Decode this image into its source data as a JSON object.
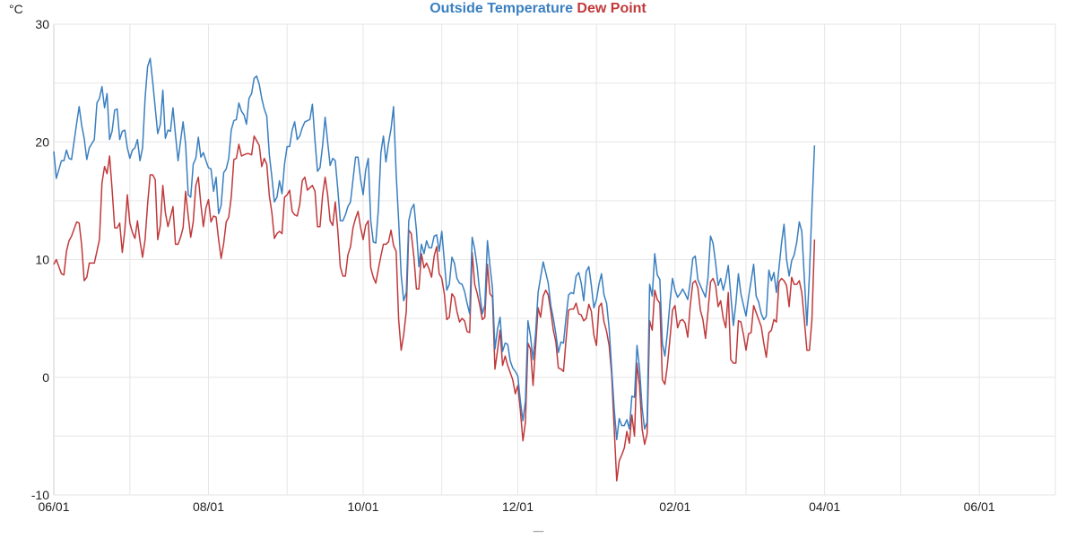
{
  "chart_data": {
    "type": "line",
    "title_parts": [
      {
        "text": "Outside Temperature",
        "color": "#3a7fc0"
      },
      {
        "text": "Dew Point",
        "color": "#c0393b"
      }
    ],
    "ylabel": "°C",
    "footer": "-------",
    "ylim": [
      -10,
      30
    ],
    "yticks": [
      30,
      20,
      10,
      0,
      -10
    ],
    "ygrid_step": 5,
    "xlim": [
      "06/01",
      "07/01"
    ],
    "xticks": [
      "06/01",
      "08/01",
      "10/01",
      "12/01",
      "02/01",
      "04/01",
      "06/01"
    ],
    "xgrid": "monthly",
    "grid": true,
    "grid_color": "#e6e6e6",
    "x": [
      "06/01",
      "06/02",
      "06/04",
      "06/05",
      "06/06",
      "06/07",
      "06/08",
      "06/10",
      "06/11",
      "06/12",
      "06/13",
      "06/14",
      "06/15",
      "06/17",
      "06/18",
      "06/19",
      "06/20",
      "06/21",
      "06/22",
      "06/23",
      "06/24",
      "06/25",
      "06/26",
      "06/27",
      "06/28",
      "06/29",
      "06/30",
      "07/01",
      "07/02",
      "07/03",
      "07/04",
      "07/05",
      "07/06",
      "07/07",
      "07/08",
      "07/09",
      "07/10",
      "07/11",
      "07/12",
      "07/13",
      "07/14",
      "07/15",
      "07/16",
      "07/17",
      "07/18",
      "07/19",
      "07/20",
      "07/21",
      "07/22",
      "07/23",
      "07/24",
      "07/25",
      "07/26",
      "07/27",
      "07/28",
      "07/29",
      "07/30",
      "07/31",
      "08/01",
      "08/02",
      "08/03",
      "08/04",
      "08/05",
      "08/06",
      "08/07",
      "08/08",
      "08/09",
      "08/10",
      "08/11",
      "08/12",
      "08/13",
      "08/14",
      "08/15",
      "08/16",
      "08/17",
      "08/18",
      "08/19",
      "08/20",
      "08/21",
      "08/22",
      "08/23",
      "08/24",
      "08/25",
      "08/26",
      "08/27",
      "08/28",
      "08/29",
      "08/30",
      "08/31",
      "09/01",
      "09/02",
      "09/03",
      "09/04",
      "09/05",
      "09/06",
      "09/07",
      "09/08",
      "09/09",
      "09/10",
      "09/11",
      "09/12",
      "09/13",
      "09/14",
      "09/15",
      "09/16",
      "09/17",
      "09/18",
      "09/19",
      "09/20",
      "09/21",
      "09/22",
      "09/23",
      "09/24",
      "09/25",
      "09/26",
      "09/27",
      "09/28",
      "09/29",
      "09/30",
      "10/01",
      "10/02",
      "10/03",
      "10/04",
      "10/05",
      "10/06",
      "10/07",
      "10/08",
      "10/09",
      "10/10",
      "10/11",
      "10/12",
      "10/13",
      "10/14",
      "10/15",
      "10/16",
      "10/17",
      "10/18",
      "10/19",
      "10/20",
      "10/21",
      "10/22",
      "10/23",
      "10/24",
      "10/25",
      "10/26",
      "10/27",
      "10/28",
      "10/29",
      "10/30",
      "10/31",
      "11/01",
      "11/02",
      "11/03",
      "11/04",
      "11/05",
      "11/06",
      "11/07",
      "11/08",
      "11/09",
      "11/10",
      "11/11",
      "11/12",
      "11/13",
      "11/14",
      "11/15",
      "11/16",
      "11/17",
      "11/18",
      "11/19",
      "11/20",
      "11/21",
      "11/22",
      "11/23",
      "11/24",
      "11/25",
      "11/26",
      "11/27",
      "11/28",
      "11/29",
      "11/30",
      "12/01",
      "12/02",
      "12/03",
      "12/04",
      "12/05",
      "12/06",
      "12/07",
      "12/08",
      "12/09",
      "12/10",
      "12/11",
      "12/12",
      "12/13",
      "12/14",
      "12/15",
      "12/16",
      "12/17",
      "12/18",
      "12/19",
      "12/20",
      "12/21",
      "12/22",
      "12/23",
      "12/24",
      "12/25",
      "12/26",
      "12/27",
      "12/28",
      "12/29",
      "12/30",
      "12/31",
      "01/01",
      "01/02",
      "01/03",
      "01/04",
      "01/05",
      "01/06",
      "01/07",
      "01/08",
      "01/09",
      "01/10",
      "01/11",
      "01/12",
      "01/13",
      "01/14",
      "01/15",
      "01/16",
      "01/17",
      "01/18",
      "01/19",
      "01/20",
      "01/21",
      "01/22",
      "01/23",
      "01/24",
      "01/25",
      "01/26",
      "01/27",
      "01/28",
      "01/29",
      "01/30",
      "01/31",
      "02/01",
      "02/02",
      "02/03",
      "02/04",
      "02/05",
      "02/06",
      "02/07",
      "02/08",
      "02/09",
      "02/10",
      "02/11",
      "02/12",
      "02/13",
      "02/14",
      "02/15",
      "02/16",
      "02/17",
      "02/18",
      "02/19",
      "02/20",
      "02/21",
      "02/22",
      "02/23",
      "02/24",
      "02/25",
      "02/26",
      "02/27",
      "02/28",
      "03/01",
      "03/02",
      "03/03",
      "03/04",
      "03/05",
      "03/06",
      "03/07",
      "03/08",
      "03/09",
      "03/10",
      "03/11",
      "03/12",
      "03/13",
      "03/14",
      "03/15",
      "03/16",
      "03/17",
      "03/18",
      "03/19",
      "03/20",
      "03/21",
      "03/22",
      "03/23",
      "03/24",
      "03/25",
      "03/26",
      "03/27",
      "03/28"
    ],
    "series": [
      {
        "name": "Outside Temperature",
        "color": "#3a7fc0",
        "values": [
          19.2,
          16.9,
          18.4,
          18.4,
          19.3,
          18.6,
          18.5,
          21.6,
          23.0,
          21.4,
          20.3,
          18.5,
          19.5,
          20.2,
          23.3,
          23.7,
          24.7,
          22.9,
          24.1,
          20.2,
          20.9,
          22.7,
          22.8,
          20.2,
          20.9,
          21.0,
          19.5,
          18.6,
          19.3,
          19.5,
          20.2,
          18.4,
          19.5,
          23.7,
          26.4,
          27.1,
          25.1,
          22.9,
          20.7,
          21.5,
          24.4,
          20.3,
          21.0,
          20.9,
          22.9,
          20.6,
          18.4,
          20.1,
          21.7,
          19.8,
          15.5,
          15.3,
          18.1,
          18.6,
          20.4,
          18.7,
          19.1,
          18.4,
          17.8,
          17.7,
          15.8,
          17.0,
          13.9,
          14.6,
          17.4,
          17.7,
          18.6,
          21.0,
          21.8,
          21.9,
          23.3,
          22.6,
          22.3,
          21.5,
          23.7,
          24.1,
          25.4,
          25.6,
          24.9,
          23.7,
          22.8,
          22.2,
          18.9,
          17.0,
          14.9,
          15.3,
          16.7,
          15.6,
          18.1,
          19.6,
          19.6,
          21.0,
          21.7,
          20.2,
          20.5,
          21.2,
          21.7,
          21.8,
          21.9,
          23.2,
          20.1,
          17.5,
          17.8,
          19.7,
          22.1,
          20.0,
          18.0,
          18.6,
          18.4,
          16.0,
          13.3,
          13.3,
          13.8,
          14.5,
          14.9,
          16.8,
          18.7,
          18.7,
          16.8,
          15.5,
          17.6,
          18.6,
          13.3,
          11.5,
          11.4,
          14.3,
          19.1,
          20.5,
          18.3,
          19.9,
          21.1,
          23.0,
          17.3,
          13.3,
          8.7,
          6.5,
          7.2,
          13.3,
          14.3,
          14.7,
          12.5,
          9.4,
          11.3,
          10.5,
          11.6,
          11.0,
          11.0,
          12.0,
          12.1,
          10.7,
          12.4,
          9.9,
          7.4,
          7.9,
          10.2,
          9.7,
          8.4,
          8.0,
          7.9,
          7.3,
          6.3,
          5.4,
          11.9,
          10.9,
          9.3,
          7.1,
          5.4,
          6.1,
          11.6,
          9.5,
          7.6,
          2.4,
          4.1,
          5.1,
          2.2,
          2.9,
          2.8,
          1.4,
          0.8,
          0.5,
          0.1,
          -2.0,
          -3.7,
          -2.0,
          4.8,
          3.5,
          1.5,
          3.7,
          7.2,
          8.5,
          9.8,
          8.9,
          8.0,
          6.1,
          5.0,
          3.7,
          2.1,
          3.0,
          2.9,
          5.0,
          7.0,
          7.2,
          7.1,
          8.6,
          8.9,
          8.0,
          6.5,
          9.0,
          9.4,
          7.8,
          5.9,
          6.6,
          7.9,
          8.8,
          7.0,
          6.3,
          4.2,
          0.8,
          -2.7,
          -5.3,
          -3.5,
          -4.1,
          -4.1,
          -3.6,
          -4.4,
          -1.6,
          -1.7,
          2.7,
          0.8,
          -2.6,
          -4.4,
          -3.8,
          7.9,
          6.9,
          10.5,
          8.7,
          8.3,
          2.9,
          1.8,
          3.8,
          6.4,
          8.4,
          7.4,
          6.8,
          7.1,
          7.5,
          7.1,
          6.6,
          8.1,
          10.1,
          10.3,
          8.3,
          7.8,
          7.3,
          6.8,
          8.5,
          12.0,
          11.4,
          9.7,
          7.8,
          8.4,
          7.4,
          8.3,
          9.5,
          7.0,
          4.4,
          6.3,
          8.8,
          7.1,
          6.1,
          5.2,
          6.8,
          8.2,
          9.6,
          6.9,
          6.4,
          5.4,
          4.9,
          5.2,
          9.1,
          8.2,
          8.9,
          7.2,
          9.3,
          11.4,
          13.0,
          10.0,
          8.6,
          9.9,
          10.4,
          11.5,
          13.2,
          12.4,
          8.5,
          4.4,
          8.7,
          14.4,
          19.7
        ]
      },
      {
        "name": "Dew Point",
        "color": "#c0393b",
        "values": [
          9.6,
          10.0,
          8.8,
          8.7,
          10.7,
          11.6,
          12.0,
          13.2,
          13.1,
          11.2,
          8.2,
          8.5,
          9.7,
          9.7,
          10.7,
          11.7,
          16.5,
          17.9,
          17.3,
          18.8,
          16.0,
          12.7,
          12.7,
          13.1,
          10.6,
          12.5,
          15.5,
          13.1,
          12.3,
          11.8,
          13.3,
          11.6,
          10.2,
          11.7,
          14.7,
          17.2,
          17.2,
          16.8,
          11.7,
          12.9,
          16.3,
          14.0,
          12.8,
          13.6,
          14.5,
          11.3,
          11.3,
          11.9,
          12.7,
          15.8,
          13.7,
          11.9,
          13.2,
          16.3,
          17.0,
          14.7,
          12.8,
          14.4,
          15.1,
          13.2,
          13.7,
          13.6,
          11.7,
          10.1,
          11.4,
          13.2,
          13.6,
          15.3,
          18.5,
          18.6,
          19.8,
          18.8,
          18.9,
          19.0,
          19.0,
          18.9,
          20.5,
          20.1,
          19.7,
          17.9,
          18.6,
          18.1,
          15.4,
          14.0,
          11.8,
          12.2,
          12.4,
          12.2,
          15.3,
          15.5,
          15.9,
          14.1,
          13.8,
          13.7,
          14.7,
          16.7,
          17.0,
          15.9,
          16.1,
          16.3,
          15.8,
          12.8,
          12.8,
          15.5,
          17.0,
          15.5,
          13.3,
          12.9,
          14.9,
          12.5,
          9.4,
          8.6,
          8.6,
          10.4,
          11.1,
          12.7,
          13.5,
          14.1,
          12.7,
          11.7,
          12.9,
          13.3,
          9.3,
          8.5,
          8.0,
          9.2,
          10.3,
          11.3,
          11.3,
          11.5,
          12.5,
          11.2,
          10.7,
          4.9,
          2.3,
          3.6,
          5.6,
          12.5,
          12.2,
          10.2,
          7.5,
          7.5,
          10.5,
          9.3,
          9.7,
          9.2,
          8.5,
          10.3,
          11.1,
          8.8,
          8.4,
          7.1,
          4.9,
          5.1,
          7.1,
          6.8,
          5.6,
          4.7,
          5.0,
          4.8,
          3.9,
          3.8,
          10.6,
          7.9,
          7.1,
          6.1,
          4.9,
          5.1,
          9.6,
          7.1,
          6.8,
          0.7,
          2.3,
          4.0,
          1.0,
          1.8,
          1.0,
          0.4,
          -0.2,
          -1.4,
          -0.7,
          -2.8,
          -5.4,
          -3.8,
          2.9,
          2.4,
          -0.7,
          2.6,
          5.9,
          5.1,
          6.9,
          7.4,
          7.0,
          5.6,
          4.0,
          3.0,
          0.8,
          0.7,
          0.5,
          3.1,
          5.7,
          5.8,
          5.8,
          6.3,
          5.4,
          5.3,
          4.8,
          5.0,
          6.2,
          5.6,
          3.6,
          2.7,
          6.0,
          6.3,
          4.7,
          3.9,
          2.7,
          0.3,
          -4.4,
          -8.8,
          -7.1,
          -6.6,
          -6.0,
          -4.6,
          -5.6,
          -3.2,
          -5.0,
          1.2,
          -0.7,
          -4.4,
          -5.7,
          -4.8,
          4.8,
          4.0,
          7.4,
          6.6,
          6.3,
          -0.2,
          -0.6,
          1.0,
          3.3,
          5.7,
          6.1,
          4.2,
          4.8,
          4.9,
          4.6,
          3.4,
          6.1,
          8.0,
          8.2,
          7.6,
          5.7,
          4.9,
          3.3,
          5.6,
          8.1,
          8.4,
          7.8,
          6.0,
          6.5,
          5.0,
          4.2,
          7.2,
          1.5,
          1.2,
          1.2,
          4.8,
          4.7,
          3.6,
          2.3,
          3.7,
          3.8,
          6.1,
          5.5,
          4.9,
          4.3,
          2.9,
          1.7,
          3.8,
          4.0,
          4.9,
          4.7,
          8.1,
          8.4,
          8.2,
          7.8,
          6.0,
          8.5,
          7.9,
          7.9,
          8.2,
          7.2,
          4.9,
          2.3,
          2.3,
          4.9,
          11.7
        ]
      }
    ]
  }
}
